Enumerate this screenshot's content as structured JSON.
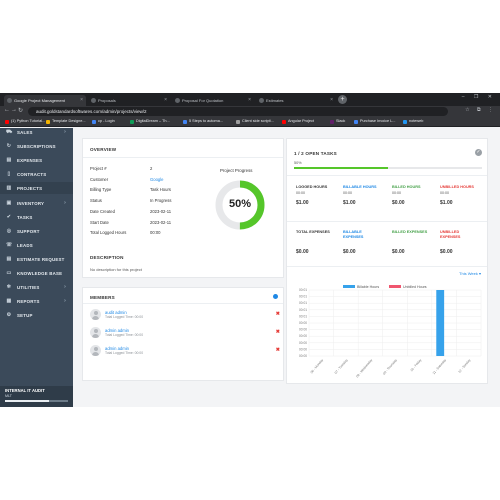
{
  "browser": {
    "tabs": [
      {
        "label": "Google Project Management",
        "active": true
      },
      {
        "label": "Proposals",
        "active": false
      },
      {
        "label": "Proposal For Quotation",
        "active": false
      },
      {
        "label": "Estimates",
        "active": false
      }
    ],
    "url": "audit.goldstandardsoftwares.com/admin/projects/view/2",
    "bookmarks": [
      {
        "label": "(1) Python Tutorial...",
        "color": "#ff0000"
      },
      {
        "label": "Template Designe...",
        "color": "#f4b400"
      },
      {
        "label": "cp - Login",
        "color": "#4285f4"
      },
      {
        "label": "DigitalDream – Th...",
        "color": "#0f9d58"
      },
      {
        "label": "5 Steps to automa...",
        "color": "#4285f4"
      },
      {
        "label": "Client side scripti...",
        "color": "#9e9e9e"
      },
      {
        "label": "Angular Project",
        "color": "#ff0000"
      },
      {
        "label": "Slack",
        "color": "#611f69"
      },
      {
        "label": "Purchase Invoice L...",
        "color": "#4285f4"
      },
      {
        "label": "noteweb",
        "color": "#2196f3"
      }
    ]
  },
  "sidebar": {
    "items": [
      {
        "label": "SALES",
        "icon": "cart-icon",
        "chevron": true
      },
      {
        "label": "SUBSCRIPTIONS",
        "icon": "refresh-icon",
        "chevron": false
      },
      {
        "label": "EXPENSES",
        "icon": "receipt-icon",
        "chevron": false
      },
      {
        "label": "CONTRACTS",
        "icon": "file-icon",
        "chevron": false
      },
      {
        "label": "PROJECTS",
        "icon": "bars-icon",
        "chevron": false
      },
      {
        "label": "INVENTORY",
        "icon": "box-icon",
        "chevron": true
      },
      {
        "label": "TASKS",
        "icon": "check-icon",
        "chevron": false
      },
      {
        "label": "SUPPORT",
        "icon": "life-ring-icon",
        "chevron": false
      },
      {
        "label": "LEADS",
        "icon": "tty-icon",
        "chevron": false
      },
      {
        "label": "ESTIMATE REQUEST",
        "icon": "file-text-icon",
        "chevron": false
      },
      {
        "label": "KNOWLEDGE BASE",
        "icon": "folder-icon",
        "chevron": false
      },
      {
        "label": "UTILITIES",
        "icon": "cogs-icon",
        "chevron": true
      },
      {
        "label": "REPORTS",
        "icon": "chart-icon",
        "chevron": true
      },
      {
        "label": "SETUP",
        "icon": "gear-icon",
        "chevron": false
      }
    ],
    "footer": {
      "title": "INTERNAL IT AUDIT",
      "subtitle": "MLT"
    }
  },
  "overview": {
    "title": "OVERVIEW",
    "progress_label": "Project Progress",
    "progress_percent": 50,
    "progress_text": "50%",
    "rows": [
      {
        "label": "Project #",
        "value": "2",
        "link": false
      },
      {
        "label": "Customer",
        "value": "Google",
        "link": true
      },
      {
        "label": "Billing Type",
        "value": "Task Hours",
        "link": false
      },
      {
        "label": "Status",
        "value": "In Progress",
        "link": false
      },
      {
        "label": "Date Created",
        "value": "2023-02-11",
        "link": false
      },
      {
        "label": "Start Date",
        "value": "2023-02-11",
        "link": false
      },
      {
        "label": "Total Logged Hours",
        "value": "00:00",
        "link": false
      }
    ],
    "description_title": "DESCRIPTION",
    "description_text": "No description for this project"
  },
  "members": {
    "title": "MEMBERS",
    "list": [
      {
        "name": "audit admin",
        "sub": "Total Logged Time: 00:00"
      },
      {
        "name": "admin admin",
        "sub": "Total Logged Time: 00:00"
      },
      {
        "name": "admin admin",
        "sub": "Total Logged Time: 00:00"
      }
    ]
  },
  "tasks": {
    "title": "1 / 2 OPEN TASKS",
    "percent_text": "50%",
    "percent": 50,
    "stats_row1": [
      {
        "label": "LOGGED HOURS",
        "sub": "00:00",
        "value": "$1.00",
        "color": "#333333"
      },
      {
        "label": "BILLABLE HOURS",
        "sub": "00:00",
        "value": "$1.00",
        "color": "#1e88e5"
      },
      {
        "label": "BILLED HOURS",
        "sub": "00:00",
        "value": "$0.00",
        "color": "#43a047"
      },
      {
        "label": "UNBILLED HOURS",
        "sub": "00:00",
        "value": "$1.00",
        "color": "#e53935"
      }
    ],
    "stats_row2": [
      {
        "label": "TOTAL EXPENSES",
        "value": "$0.00",
        "color": "#333333"
      },
      {
        "label": "BILLABLE EXPENSES",
        "value": "$0.00",
        "color": "#1e88e5"
      },
      {
        "label": "BILLED EXPENSES",
        "value": "$0.00",
        "color": "#43a047"
      },
      {
        "label": "UNBILLED EXPENSES",
        "value": "$0.00",
        "color": "#e53935"
      }
    ],
    "period": "This Week"
  },
  "chart_data": {
    "type": "bar",
    "categories": [
      "06 - Monday",
      "07 - Tuesday",
      "08 - Wednesday",
      "09 - Thursday",
      "10 - Friday",
      "11 - Saturday",
      "12 - Sunday"
    ],
    "series": [
      {
        "name": "Billable Hours",
        "color": "#36a2eb",
        "values": [
          0,
          0,
          0,
          0,
          0,
          1,
          0
        ]
      },
      {
        "name": "Unbilled Hours",
        "color": "#f0566f",
        "values": [
          0,
          0,
          0,
          0,
          0,
          0,
          0
        ]
      }
    ],
    "yticks": [
      "00:01",
      "00:01",
      "00:01",
      "00:01",
      "00:01",
      "00:00",
      "00:00",
      "00:00",
      "00:00",
      "00:00",
      "00:00"
    ],
    "ylim": [
      0,
      1
    ],
    "legend": "top-center",
    "grid": true
  }
}
